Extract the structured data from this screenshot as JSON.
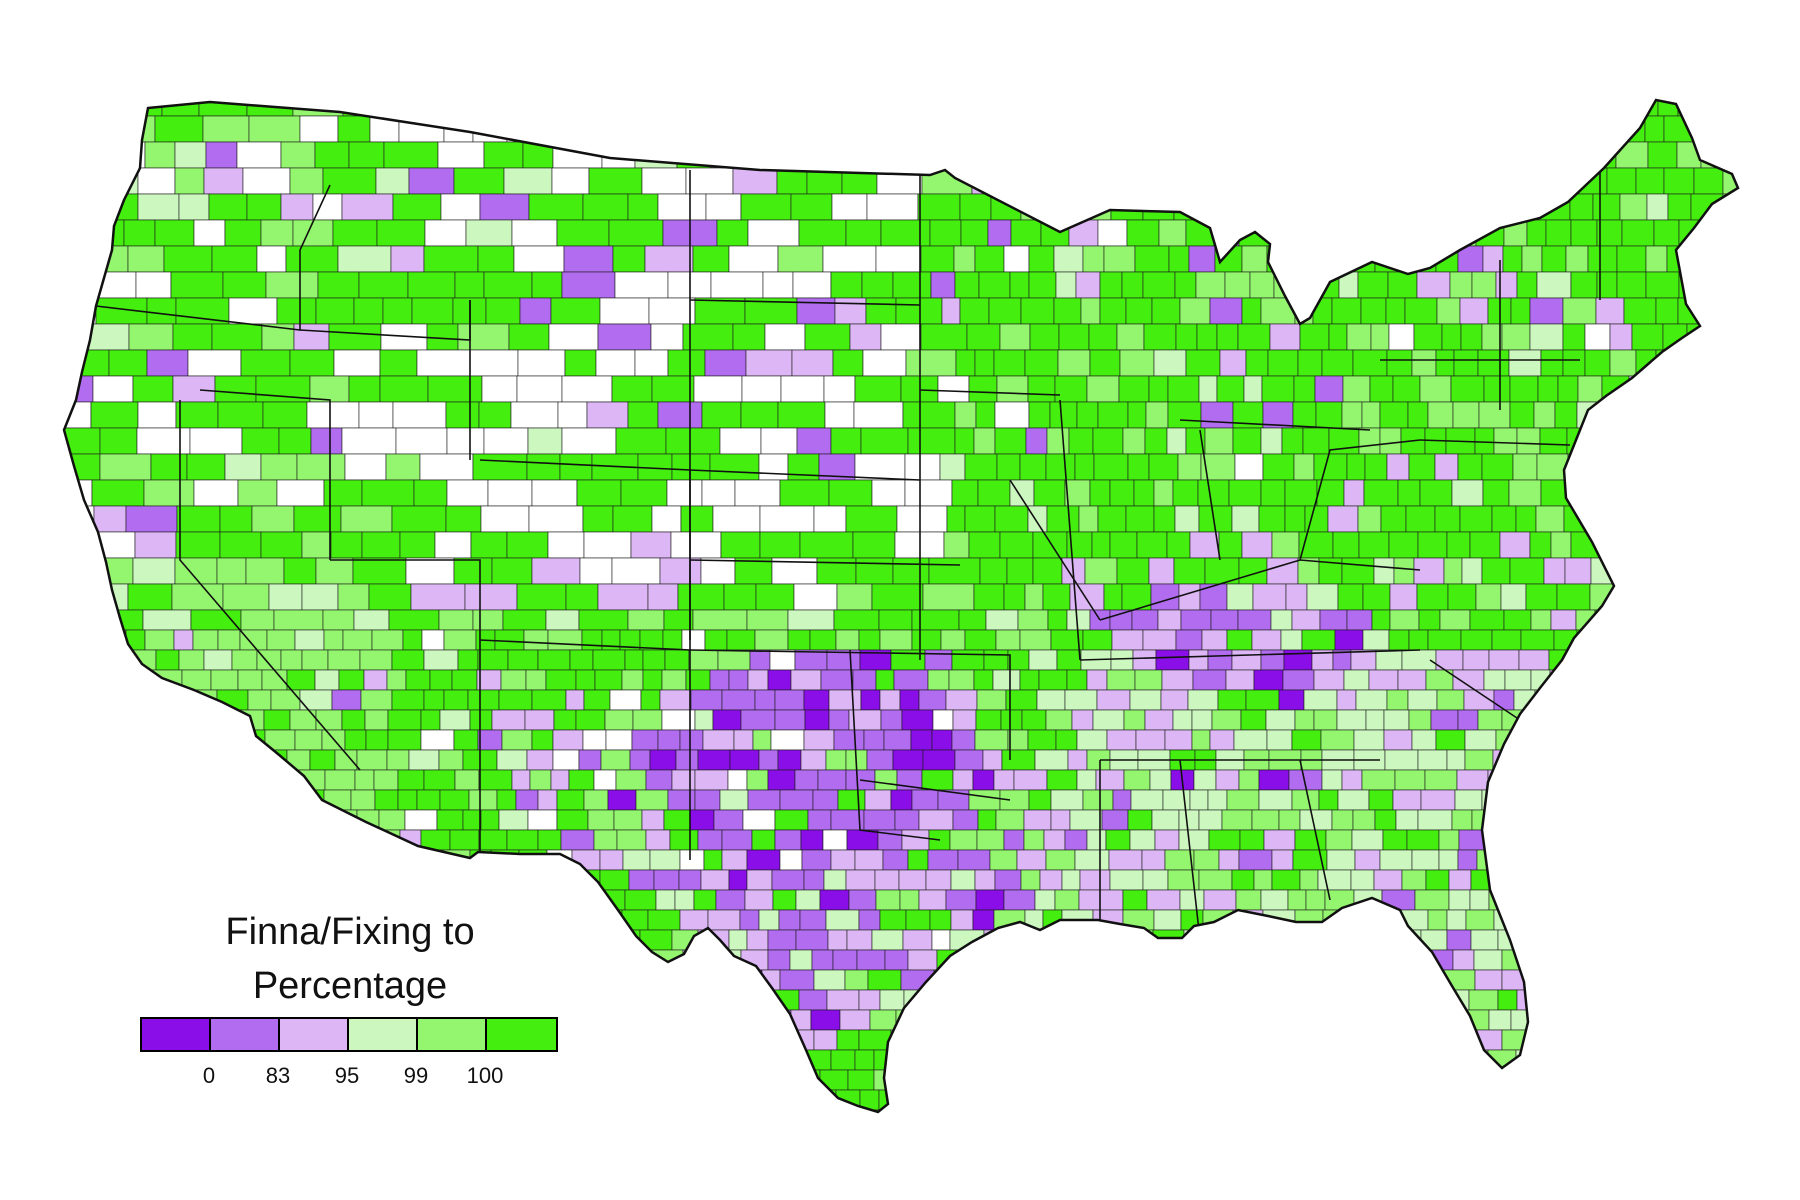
{
  "legend": {
    "title_line1": "Finna/Fixing to",
    "title_line2": "Percentage",
    "tick_labels": [
      "0",
      "83",
      "95",
      "99",
      "100"
    ],
    "class_colors": [
      "#8a0ee8",
      "#b26cf0",
      "#dcb6f5",
      "#ccf8c0",
      "#94f66e",
      "#44ee0e"
    ],
    "no_data_color": "#ffffff"
  },
  "map": {
    "subject": "United States counties",
    "border_color": "#1a1a1a"
  }
}
